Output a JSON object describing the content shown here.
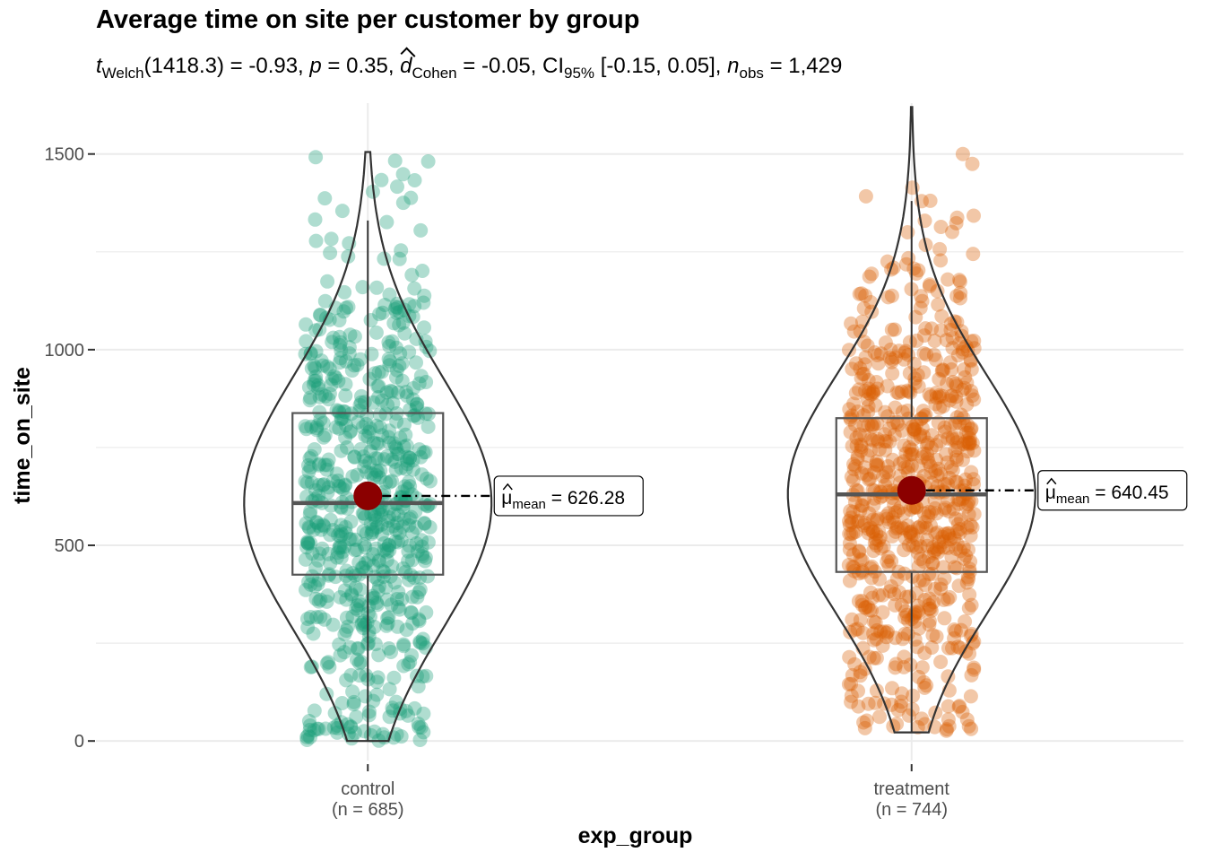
{
  "chart_data": {
    "type": "violin-box-scatter",
    "title": "Average time on site per customer by group",
    "subtitle": {
      "t_label": "t",
      "t_sub": "Welch",
      "t_value": "(1418.3) = -0.93, ",
      "p_label": "p",
      "p_value": " = 0.35, ",
      "d_label": "d",
      "d_sub": "Cohen",
      "d_value": " = -0.05, CI",
      "ci_sub": "95%",
      "ci_value": " [-0.15, 0.05], ",
      "n_label": "n",
      "n_sub": "obs",
      "n_value": " = 1,429"
    },
    "xlabel": "exp_group",
    "ylabel": "time_on_site",
    "ylim": [
      -50,
      1630
    ],
    "yticks": [
      "0",
      "500",
      "1000",
      "1500"
    ],
    "grid": true,
    "groups": [
      {
        "name": "control",
        "n_label": "(n = 685)",
        "color": "#1b9e77",
        "min": 0,
        "q1": 425,
        "median": 608,
        "q3": 838,
        "whisker_high": 1330,
        "max": 1505,
        "mean": 626.28,
        "mean_label": "626.28",
        "mu_sub": "mean",
        "n": 685
      },
      {
        "name": "treatment",
        "n_label": "(n = 744)",
        "color": "#d95f02",
        "min": 22,
        "q1": 432,
        "median": 630,
        "q3": 825,
        "whisker_high": 1380,
        "max": 1620,
        "mean": 640.45,
        "mean_label": "640.45",
        "mu_sub": "mean",
        "n": 744
      }
    ],
    "mean_color": "#8b0000"
  }
}
